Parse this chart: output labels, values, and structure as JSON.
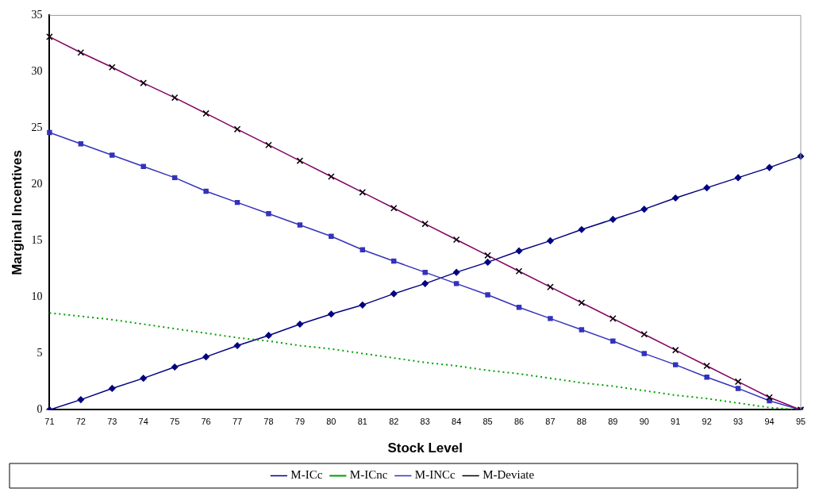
{
  "chart_data": {
    "type": "line",
    "xlabel": "Stock Level",
    "ylabel": "Marginal Incentives",
    "categories": [
      "71",
      "72",
      "73",
      "74",
      "75",
      "76",
      "77",
      "78",
      "79",
      "80",
      "81",
      "82",
      "83",
      "84",
      "85",
      "86",
      "87",
      "88",
      "89",
      "90",
      "91",
      "92",
      "93",
      "94",
      "95"
    ],
    "series": [
      {
        "name": "M-ICc",
        "color": "#000080",
        "marker": "diamond",
        "values": [
          0,
          0.9,
          1.9,
          2.8,
          3.8,
          4.7,
          5.7,
          6.6,
          7.6,
          8.5,
          9.3,
          10.3,
          11.2,
          12.2,
          13.1,
          14.1,
          15.0,
          16.0,
          16.9,
          17.8,
          18.8,
          19.7,
          20.6,
          21.5,
          22.5
        ]
      },
      {
        "name": "M-ICnc",
        "color": "#00a000",
        "marker": "none",
        "line_style": "dotted",
        "values": [
          8.6,
          8.3,
          8.0,
          7.6,
          7.2,
          6.8,
          6.4,
          6.1,
          5.7,
          5.4,
          5.0,
          4.6,
          4.2,
          3.9,
          3.5,
          3.2,
          2.8,
          2.4,
          2.1,
          1.7,
          1.3,
          1.0,
          0.6,
          0.2,
          0
        ]
      },
      {
        "name": "M-INCc",
        "color": "#3333bb",
        "marker": "square",
        "values": [
          24.6,
          23.6,
          22.6,
          21.6,
          20.6,
          19.4,
          18.4,
          17.4,
          16.4,
          15.4,
          14.2,
          13.2,
          12.2,
          11.2,
          10.2,
          9.1,
          8.1,
          7.1,
          6.1,
          5.0,
          4.0,
          2.9,
          1.9,
          0.8,
          0
        ]
      },
      {
        "name": "M-Deviate",
        "color": "#800060",
        "marker": "cross",
        "values": [
          33.1,
          31.7,
          30.4,
          29.0,
          27.7,
          26.3,
          24.9,
          23.5,
          22.1,
          20.7,
          19.3,
          17.9,
          16.5,
          15.1,
          13.7,
          12.3,
          10.9,
          9.5,
          8.1,
          6.7,
          5.3,
          3.9,
          2.5,
          1.1,
          0
        ]
      }
    ],
    "ylim": [
      0,
      35
    ],
    "yticks": [
      0,
      5,
      10,
      15,
      20,
      25,
      30,
      35
    ],
    "grid": false,
    "legend": "bottom"
  }
}
